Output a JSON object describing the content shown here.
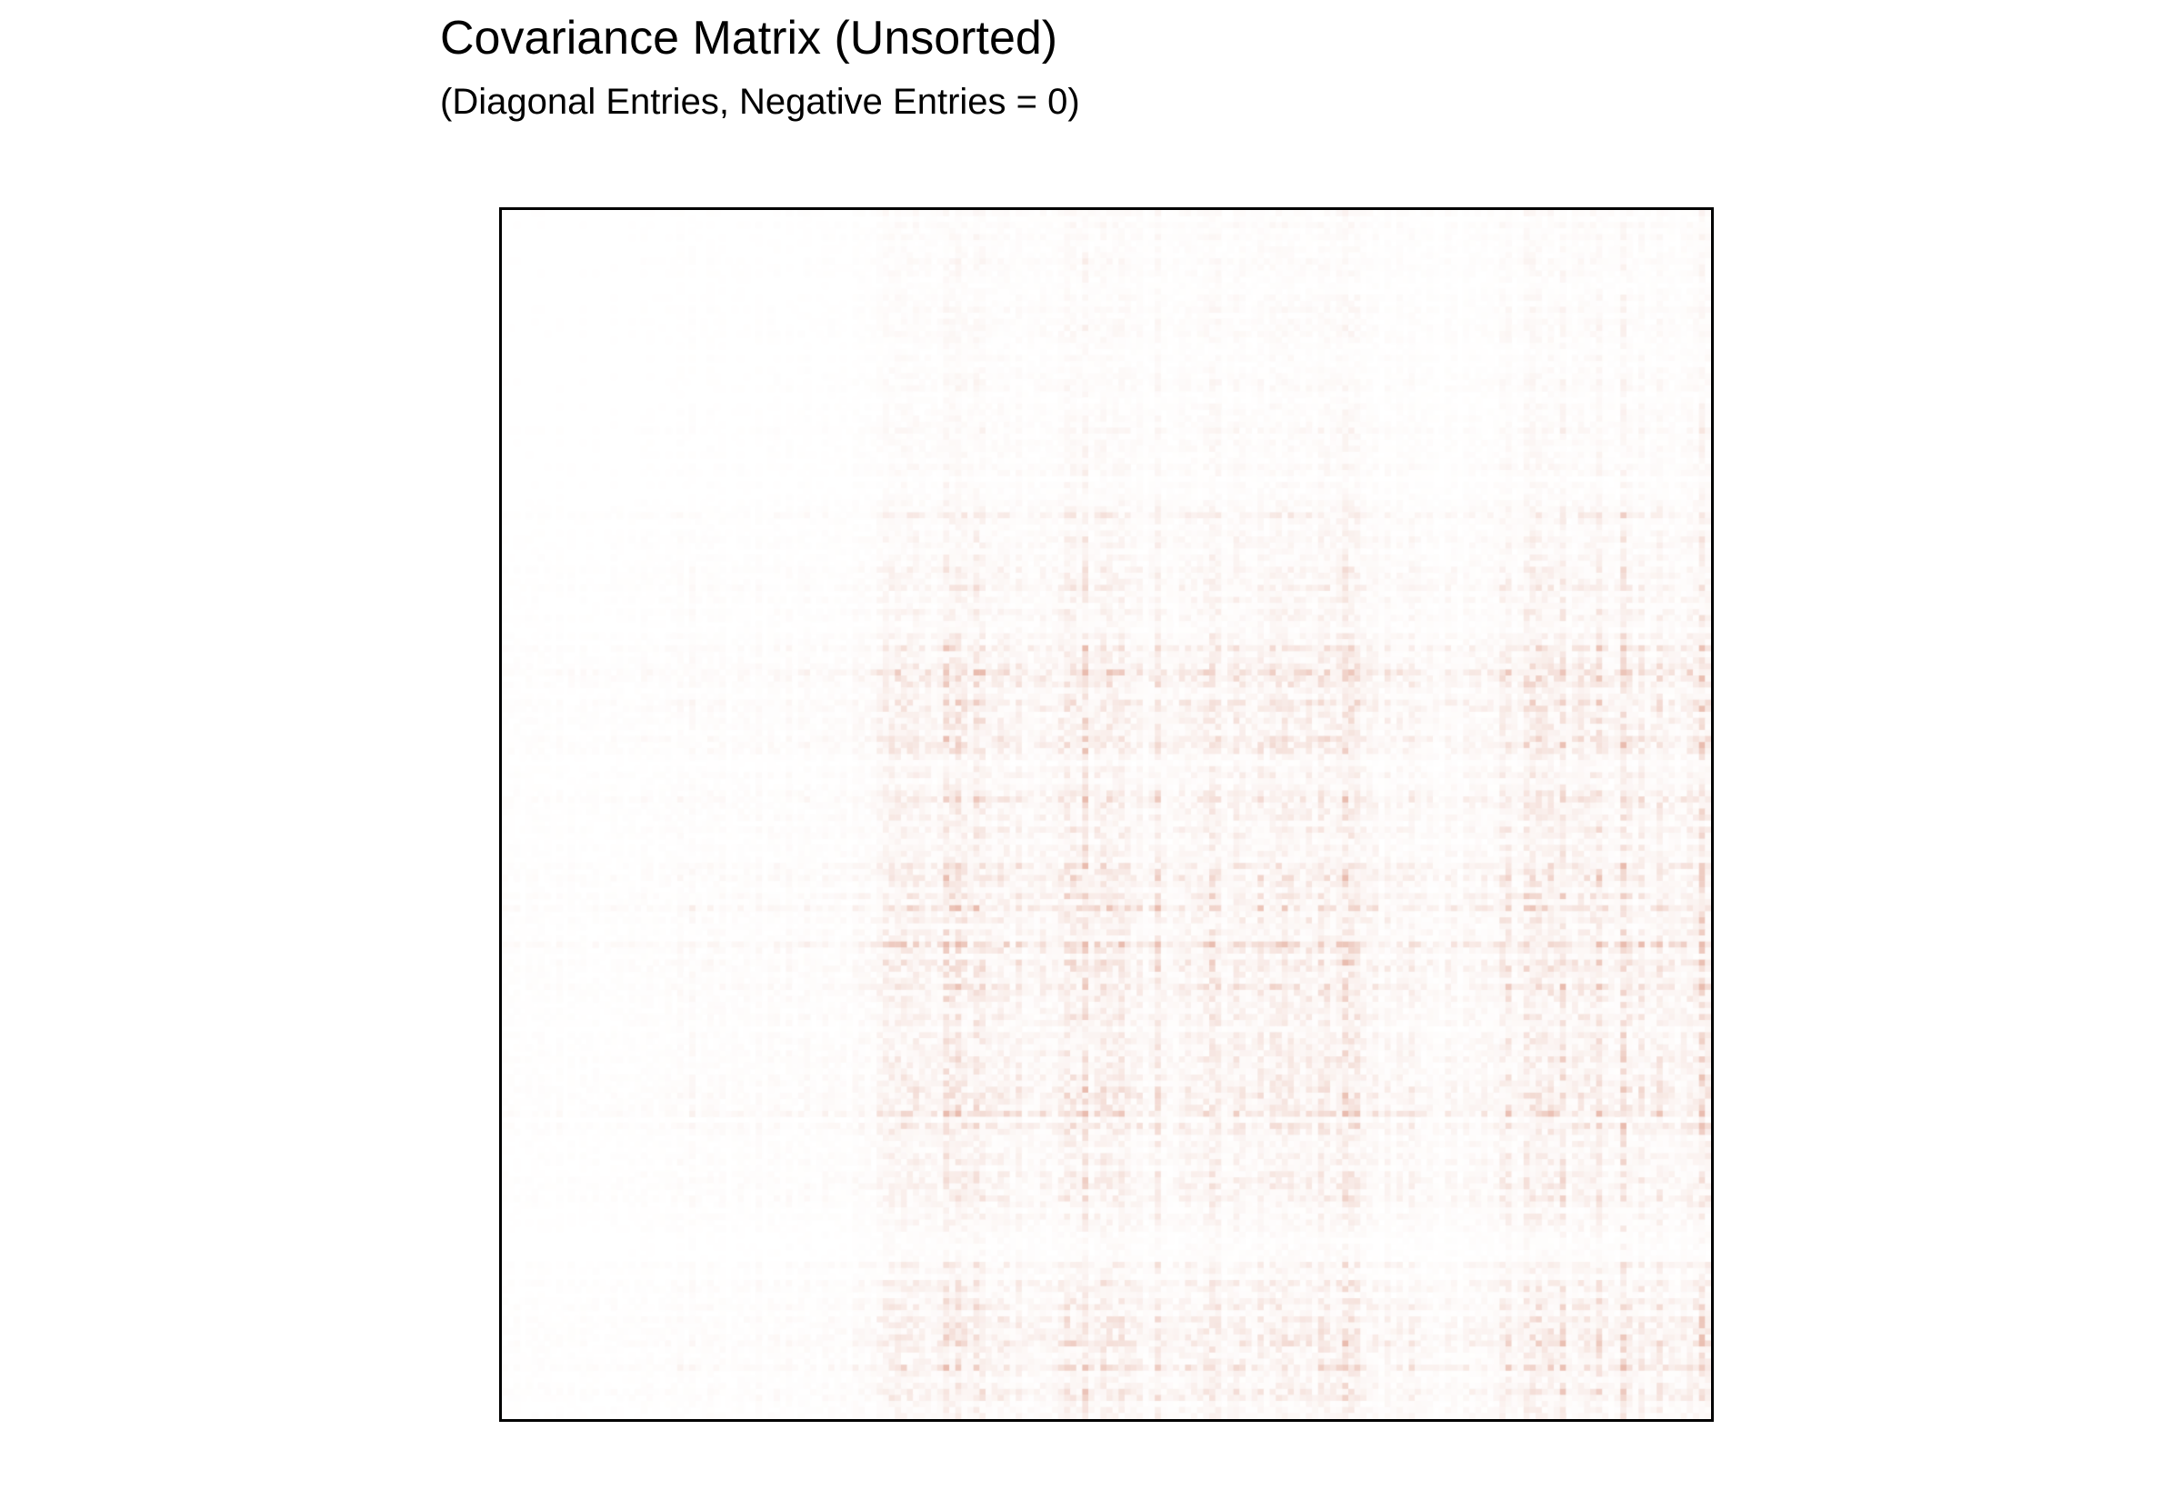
{
  "chart_data": {
    "type": "heatmap",
    "title": "Covariance Matrix (Unsorted)",
    "subtitle": "(Diagonal Entries, Negative Entries = 0)",
    "xlabel": "",
    "ylabel": "",
    "axes_visible": false,
    "grid": false,
    "legend": "none",
    "colormap": {
      "low_color": "#ffffff",
      "high_color": "#c0401a"
    },
    "matrix_size": 200,
    "variable_groups": [
      {
        "start": 0,
        "end": 27,
        "strength": 0.06
      },
      {
        "start": 27,
        "end": 50,
        "strength": 0.12
      },
      {
        "start": 50,
        "end": 62,
        "strength": 0.18
      },
      {
        "start": 62,
        "end": 72,
        "strength": 0.55
      },
      {
        "start": 72,
        "end": 82,
        "strength": 0.75
      },
      {
        "start": 82,
        "end": 92,
        "strength": 0.45
      },
      {
        "start": 92,
        "end": 103,
        "strength": 0.7
      },
      {
        "start": 103,
        "end": 115,
        "strength": 0.4
      },
      {
        "start": 115,
        "end": 132,
        "strength": 0.55
      },
      {
        "start": 132,
        "end": 142,
        "strength": 0.7
      },
      {
        "start": 142,
        "end": 152,
        "strength": 0.35
      },
      {
        "start": 152,
        "end": 165,
        "strength": 0.25
      },
      {
        "start": 165,
        "end": 184,
        "strength": 0.6
      },
      {
        "start": 184,
        "end": 200,
        "strength": 0.65
      }
    ],
    "row_bands": [
      {
        "start": 0,
        "end": 50,
        "strength": 0.12
      },
      {
        "start": 50,
        "end": 72,
        "strength": 0.3
      },
      {
        "start": 72,
        "end": 90,
        "strength": 0.55
      },
      {
        "start": 90,
        "end": 108,
        "strength": 0.35
      },
      {
        "start": 108,
        "end": 128,
        "strength": 0.55
      },
      {
        "start": 128,
        "end": 145,
        "strength": 0.4
      },
      {
        "start": 145,
        "end": 165,
        "strength": 0.5
      },
      {
        "start": 165,
        "end": 178,
        "strength": 0.25
      },
      {
        "start": 178,
        "end": 200,
        "strength": 0.5
      }
    ],
    "value_range": [
      0,
      1
    ],
    "typical_max_intensity": 0.35
  }
}
